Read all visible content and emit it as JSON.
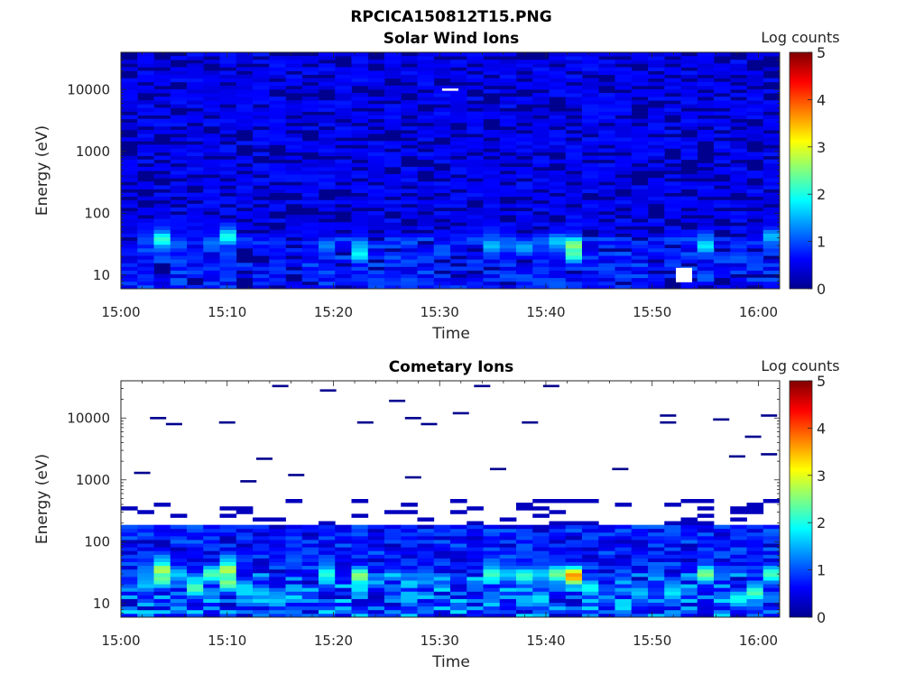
{
  "figure_title": "RPCICA150812T15.PNG",
  "chart_data": [
    {
      "type": "heatmap",
      "title": "Solar Wind Ions",
      "xlabel": "Time",
      "ylabel": "Energy (eV)",
      "x_range": [
        "15:00",
        "16:02"
      ],
      "y_range": [
        6,
        40000
      ],
      "y_scale": "log",
      "x_ticks": [
        "15:00",
        "15:10",
        "15:20",
        "15:30",
        "15:40",
        "15:50",
        "16:00"
      ],
      "y_ticks": [
        "10",
        "100",
        "1000",
        "10000"
      ],
      "colorbar": {
        "label": "Log counts",
        "range": [
          0,
          5
        ],
        "ticks": [
          "0",
          "1",
          "2",
          "3",
          "4",
          "5"
        ],
        "colormap": "jet"
      },
      "background_level": 0.3,
      "hot_spots": [
        {
          "time": "15:03.5",
          "energy": 38,
          "value": 2.3
        },
        {
          "time": "15:03.5",
          "energy": 28,
          "value": 1.3
        },
        {
          "time": "15:03.5",
          "energy": 55,
          "value": 1.0
        },
        {
          "time": "15:05",
          "energy": 28,
          "value": 1.0
        },
        {
          "time": "15:06.5",
          "energy": 22,
          "value": 0.9
        },
        {
          "time": "15:08.5",
          "energy": 33,
          "value": 1.2
        },
        {
          "time": "15:10",
          "energy": 42,
          "value": 2.0
        },
        {
          "time": "15:10",
          "energy": 55,
          "value": 1.1
        },
        {
          "time": "15:10",
          "energy": 22,
          "value": 1.0
        },
        {
          "time": "15:10",
          "energy": 15,
          "value": 0.9
        },
        {
          "time": "15:19.5",
          "energy": 30,
          "value": 1.3
        },
        {
          "time": "15:22.5",
          "energy": 30,
          "value": 1.5
        },
        {
          "time": "15:22.5",
          "energy": 22,
          "value": 1.9
        },
        {
          "time": "15:35.5",
          "energy": 30,
          "value": 2.0
        },
        {
          "time": "15:35.5",
          "energy": 42,
          "value": 1.3
        },
        {
          "time": "15:35.5",
          "energy": 55,
          "value": 1.0
        },
        {
          "time": "15:37.5",
          "energy": 28,
          "value": 1.7
        },
        {
          "time": "15:39",
          "energy": 12,
          "value": 1.1
        },
        {
          "time": "15:40.5",
          "energy": 35,
          "value": 2.0
        },
        {
          "time": "15:40.5",
          "energy": 28,
          "value": 1.4
        },
        {
          "time": "15:42.5",
          "energy": 30,
          "value": 2.6
        },
        {
          "time": "15:42.5",
          "energy": 22,
          "value": 2.3
        },
        {
          "time": "15:55",
          "energy": 30,
          "value": 1.8
        },
        {
          "time": "15:55",
          "energy": 40,
          "value": 1.2
        },
        {
          "time": "16:01",
          "energy": 42,
          "value": 1.6
        },
        {
          "time": "16:01",
          "energy": 30,
          "value": 1.1
        }
      ],
      "blank_cells": [
        {
          "time": "15:31",
          "energy": 10000
        },
        {
          "time": "15:53",
          "energy": 10
        }
      ]
    },
    {
      "type": "heatmap",
      "title": "Cometary Ions",
      "xlabel": "Time",
      "ylabel": "Energy (eV)",
      "x_range": [
        "15:00",
        "16:02"
      ],
      "y_range": [
        6,
        40000
      ],
      "y_scale": "log",
      "x_ticks": [
        "15:00",
        "15:10",
        "15:20",
        "15:30",
        "15:40",
        "15:50",
        "16:00"
      ],
      "y_ticks": [
        "10",
        "100",
        "1000",
        "10000"
      ],
      "colorbar": {
        "label": "Log counts",
        "range": [
          0,
          5
        ],
        "ticks": [
          "0",
          "1",
          "2",
          "3",
          "4",
          "5"
        ],
        "colormap": "jet"
      },
      "hot_spots": [
        {
          "time": "15:03.5",
          "energy": 35,
          "value": 3.0
        },
        {
          "time": "15:03.5",
          "energy": 25,
          "value": 2.6
        },
        {
          "time": "15:03.5",
          "energy": 50,
          "value": 1.7
        },
        {
          "time": "15:05",
          "energy": 30,
          "value": 1.8
        },
        {
          "time": "15:07",
          "energy": 18,
          "value": 2.3
        },
        {
          "time": "15:08.5",
          "energy": 30,
          "value": 2.3
        },
        {
          "time": "15:10",
          "energy": 35,
          "value": 2.8
        },
        {
          "time": "15:10",
          "energy": 22,
          "value": 2.5
        },
        {
          "time": "15:10",
          "energy": 50,
          "value": 1.6
        },
        {
          "time": "15:12",
          "energy": 18,
          "value": 1.9
        },
        {
          "time": "15:13.5",
          "energy": 15,
          "value": 1.7
        },
        {
          "time": "15:19.5",
          "energy": 30,
          "value": 2.1
        },
        {
          "time": "15:19.5",
          "energy": 45,
          "value": 1.2
        },
        {
          "time": "15:22.5",
          "energy": 28,
          "value": 2.6
        },
        {
          "time": "15:22.5",
          "energy": 18,
          "value": 1.8
        },
        {
          "time": "15:27",
          "energy": 12,
          "value": 1.6
        },
        {
          "time": "15:28",
          "energy": 28,
          "value": 1.7
        },
        {
          "time": "15:35.5",
          "energy": 30,
          "value": 2.8
        },
        {
          "time": "15:35.5",
          "energy": 45,
          "value": 1.6
        },
        {
          "time": "15:37.5",
          "energy": 28,
          "value": 2.5
        },
        {
          "time": "15:39",
          "energy": 12,
          "value": 2.1
        },
        {
          "time": "15:40.5",
          "energy": 30,
          "value": 3.0
        },
        {
          "time": "15:42.5",
          "energy": 28,
          "value": 3.7
        },
        {
          "time": "15:44",
          "energy": 18,
          "value": 2.0
        },
        {
          "time": "15:48.5",
          "energy": 15,
          "value": 1.7
        },
        {
          "time": "15:51.5",
          "energy": 15,
          "value": 2.0
        },
        {
          "time": "15:55",
          "energy": 30,
          "value": 2.5
        },
        {
          "time": "15:58",
          "energy": 12,
          "value": 2.0
        },
        {
          "time": "15:59.5",
          "energy": 15,
          "value": 2.3
        },
        {
          "time": "16:01",
          "energy": 30,
          "value": 2.3
        }
      ],
      "isolated_lines": [
        {
          "time": "15:02",
          "energy": 1300
        },
        {
          "time": "15:03.5",
          "energy": 10000
        },
        {
          "time": "15:05",
          "energy": 8000
        },
        {
          "time": "15:10",
          "energy": 8500
        },
        {
          "time": "15:12",
          "energy": 950
        },
        {
          "time": "15:13.5",
          "energy": 2200
        },
        {
          "time": "15:15",
          "energy": 33000
        },
        {
          "time": "15:16.5",
          "energy": 1200
        },
        {
          "time": "15:19.5",
          "energy": 28000
        },
        {
          "time": "15:23",
          "energy": 8500
        },
        {
          "time": "15:26",
          "energy": 19000
        },
        {
          "time": "15:27.5",
          "energy": 10000
        },
        {
          "time": "15:27.5",
          "energy": 1100
        },
        {
          "time": "15:29",
          "energy": 8000
        },
        {
          "time": "15:32",
          "energy": 12000
        },
        {
          "time": "15:34",
          "energy": 33000
        },
        {
          "time": "15:35.5",
          "energy": 1500
        },
        {
          "time": "15:38.5",
          "energy": 8500
        },
        {
          "time": "15:40.5",
          "energy": 33000
        },
        {
          "time": "15:47",
          "energy": 1500
        },
        {
          "time": "15:51.5",
          "energy": 11000
        },
        {
          "time": "15:51.5",
          "energy": 8500
        },
        {
          "time": "15:56.5",
          "energy": 9500
        },
        {
          "time": "15:58",
          "energy": 2400
        },
        {
          "time": "15:59.5",
          "energy": 5000
        },
        {
          "time": "16:01",
          "energy": 11000
        },
        {
          "time": "16:01",
          "energy": 2600
        }
      ]
    }
  ]
}
